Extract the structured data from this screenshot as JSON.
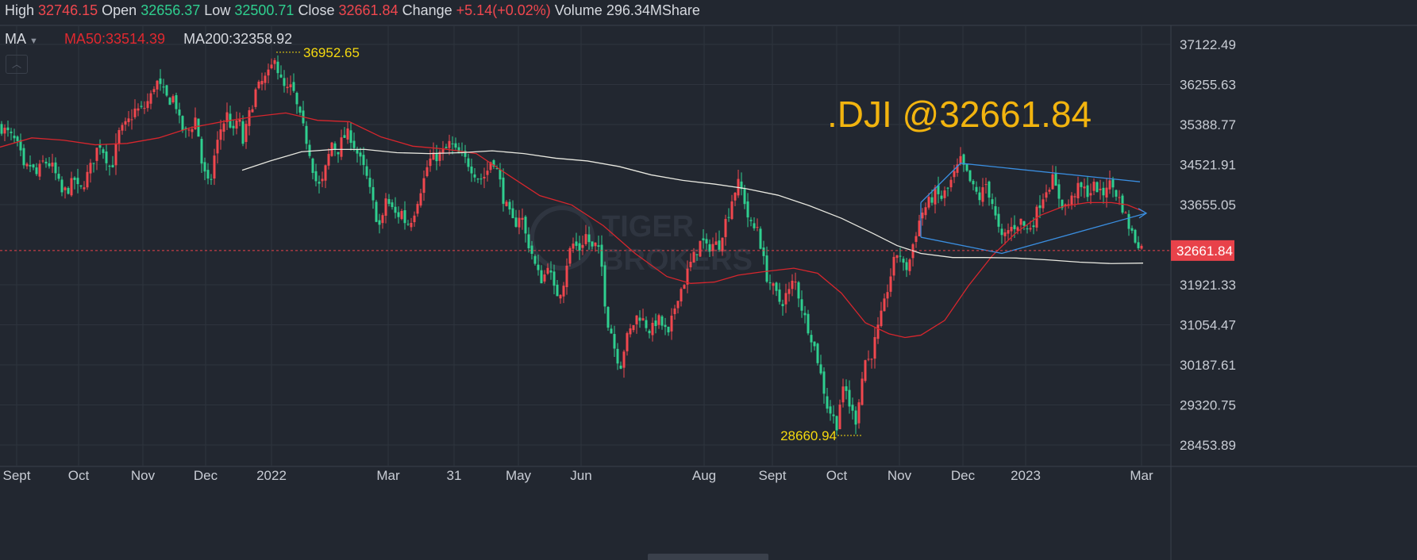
{
  "header": {
    "high_label": "High",
    "high": "32746.15",
    "open_label": "Open",
    "open": "32656.37",
    "low_label": "Low",
    "low": "32500.71",
    "close_label": "Close",
    "close": "32661.84",
    "change_label": "Change",
    "change": "+5.14(+0.02%)",
    "volume_label": "Volume",
    "volume": "296.34MShare"
  },
  "indicators": {
    "selector": "MA",
    "ma50": "MA50:33514.39",
    "ma200": "MA200:32358.92"
  },
  "watermark": {
    "line1": "TIGER",
    "line2": "BROKERS"
  },
  "colors": {
    "background": "#222730",
    "grid": "#2e343e",
    "up": "#f0474e",
    "down": "#2fcf8f",
    "ma50": "#d7262d",
    "ma200": "#e8e8e0",
    "title": "#f2b40f",
    "annotation": "#f5d90f",
    "pattern": "#3a8ee0",
    "price_tag": "#e8424a"
  },
  "chart_data": {
    "type": "candlestick",
    "title": ".DJI @32661.84",
    "yaxis_ticks": [
      "37122.49",
      "36255.63",
      "35388.77",
      "34521.91",
      "33655.05",
      "32661.84",
      "31921.33",
      "31054.47",
      "30187.61",
      "29320.75",
      "28453.89"
    ],
    "current_price": 32661.84,
    "annotations": {
      "high": "36952.65",
      "low": "28660.94"
    },
    "x_ticks": [
      "Sept",
      "Oct",
      "Nov",
      "Dec",
      "2022",
      "Mar",
      "31",
      "May",
      "Jun",
      "Aug",
      "Sept",
      "Oct",
      "Nov",
      "Dec",
      "2023",
      "Mar"
    ],
    "close_path": [
      [
        0,
        35350
      ],
      [
        10,
        35200
      ],
      [
        20,
        35000
      ],
      [
        25,
        34800
      ],
      [
        30,
        34400
      ],
      [
        38,
        34500
      ],
      [
        46,
        34300
      ],
      [
        55,
        34600
      ],
      [
        65,
        34500
      ],
      [
        70,
        34300
      ],
      [
        78,
        33900
      ],
      [
        86,
        34000
      ],
      [
        94,
        34200
      ],
      [
        100,
        33900
      ],
      [
        110,
        34300
      ],
      [
        115,
        34500
      ],
      [
        125,
        35000
      ],
      [
        131,
        34800
      ],
      [
        140,
        34400
      ],
      [
        150,
        35200
      ],
      [
        160,
        35400
      ],
      [
        170,
        35700
      ],
      [
        180,
        35700
      ],
      [
        190,
        36000
      ],
      [
        196,
        36350
      ],
      [
        205,
        36100
      ],
      [
        212,
        35900
      ],
      [
        220,
        36000
      ],
      [
        225,
        35500
      ],
      [
        232,
        35200
      ],
      [
        240,
        35300
      ],
      [
        248,
        35600
      ],
      [
        252,
        34700
      ],
      [
        258,
        34300
      ],
      [
        264,
        34000
      ],
      [
        270,
        34700
      ],
      [
        278,
        35300
      ],
      [
        286,
        35600
      ],
      [
        294,
        35200
      ],
      [
        300,
        35600
      ],
      [
        306,
        35000
      ],
      [
        314,
        35600
      ],
      [
        322,
        36100
      ],
      [
        330,
        36300
      ],
      [
        340,
        36500
      ],
      [
        346,
        36900
      ],
      [
        352,
        36400
      ],
      [
        360,
        36100
      ],
      [
        368,
        36200
      ],
      [
        375,
        35700
      ],
      [
        382,
        35300
      ],
      [
        390,
        34800
      ],
      [
        397,
        34200
      ],
      [
        404,
        34000
      ],
      [
        411,
        34500
      ],
      [
        418,
        35000
      ],
      [
        425,
        34800
      ],
      [
        432,
        35100
      ],
      [
        440,
        35200
      ],
      [
        447,
        34900
      ],
      [
        454,
        34600
      ],
      [
        461,
        34300
      ],
      [
        468,
        33800
      ],
      [
        474,
        33400
      ],
      [
        480,
        33100
      ],
      [
        486,
        33800
      ],
      [
        492,
        33600
      ],
      [
        500,
        33400
      ],
      [
        506,
        33500
      ],
      [
        512,
        33200
      ],
      [
        520,
        33400
      ],
      [
        528,
        33900
      ],
      [
        534,
        34200
      ],
      [
        540,
        34600
      ],
      [
        550,
        34700
      ],
      [
        560,
        34800
      ],
      [
        567,
        35000
      ],
      [
        574,
        34800
      ],
      [
        580,
        34700
      ],
      [
        588,
        34600
      ],
      [
        596,
        34400
      ],
      [
        604,
        34200
      ],
      [
        612,
        34300
      ],
      [
        620,
        34700
      ],
      [
        628,
        34300
      ],
      [
        634,
        33800
      ],
      [
        640,
        33500
      ],
      [
        648,
        33200
      ],
      [
        656,
        33500
      ],
      [
        662,
        33000
      ],
      [
        670,
        32600
      ],
      [
        676,
        32200
      ],
      [
        684,
        32000
      ],
      [
        690,
        32400
      ],
      [
        698,
        31800
      ],
      [
        704,
        31700
      ],
      [
        710,
        32000
      ],
      [
        716,
        32600
      ],
      [
        722,
        32800
      ],
      [
        730,
        32700
      ],
      [
        738,
        33000
      ],
      [
        746,
        32700
      ],
      [
        752,
        32800
      ],
      [
        758,
        32300
      ],
      [
        764,
        31200
      ],
      [
        770,
        30900
      ],
      [
        776,
        30400
      ],
      [
        782,
        30200
      ],
      [
        788,
        30700
      ],
      [
        796,
        31000
      ],
      [
        804,
        31300
      ],
      [
        812,
        31100
      ],
      [
        820,
        30900
      ],
      [
        828,
        31200
      ],
      [
        836,
        31000
      ],
      [
        842,
        30800
      ],
      [
        848,
        31300
      ],
      [
        854,
        31700
      ],
      [
        860,
        31900
      ],
      [
        868,
        32300
      ],
      [
        876,
        32600
      ],
      [
        884,
        32900
      ],
      [
        890,
        32700
      ],
      [
        898,
        32800
      ],
      [
        906,
        32800
      ],
      [
        912,
        33200
      ],
      [
        918,
        33500
      ],
      [
        924,
        33900
      ],
      [
        930,
        34100
      ],
      [
        936,
        33900
      ],
      [
        942,
        33400
      ],
      [
        948,
        33100
      ],
      [
        954,
        33200
      ],
      [
        960,
        32600
      ],
      [
        966,
        32100
      ],
      [
        972,
        31900
      ],
      [
        978,
        31700
      ],
      [
        984,
        31500
      ],
      [
        990,
        31700
      ],
      [
        996,
        31800
      ],
      [
        1000,
        32100
      ],
      [
        1006,
        31700
      ],
      [
        1012,
        31300
      ],
      [
        1018,
        31000
      ],
      [
        1024,
        30700
      ],
      [
        1030,
        30300
      ],
      [
        1036,
        29800
      ],
      [
        1042,
        29300
      ],
      [
        1048,
        29100
      ],
      [
        1054,
        28900
      ],
      [
        1060,
        29600
      ],
      [
        1066,
        29600
      ],
      [
        1072,
        29200
      ],
      [
        1078,
        29000
      ],
      [
        1084,
        29700
      ],
      [
        1090,
        30300
      ],
      [
        1096,
        30300
      ],
      [
        1102,
        30700
      ],
      [
        1108,
        31100
      ],
      [
        1114,
        31500
      ],
      [
        1120,
        32000
      ],
      [
        1126,
        32400
      ],
      [
        1132,
        32700
      ],
      [
        1138,
        32300
      ],
      [
        1144,
        32300
      ],
      [
        1150,
        32800
      ],
      [
        1156,
        33200
      ],
      [
        1162,
        33500
      ],
      [
        1170,
        33700
      ],
      [
        1178,
        33900
      ],
      [
        1186,
        33800
      ],
      [
        1194,
        34000
      ],
      [
        1202,
        34300
      ],
      [
        1210,
        34600
      ],
      [
        1218,
        34300
      ],
      [
        1226,
        34000
      ],
      [
        1234,
        33800
      ],
      [
        1242,
        34100
      ],
      [
        1250,
        33700
      ],
      [
        1256,
        33200
      ],
      [
        1262,
        32900
      ],
      [
        1270,
        33100
      ],
      [
        1278,
        33200
      ],
      [
        1286,
        33300
      ],
      [
        1294,
        33100
      ],
      [
        1302,
        33300
      ],
      [
        1310,
        33700
      ],
      [
        1318,
        34000
      ],
      [
        1326,
        34200
      ],
      [
        1332,
        33900
      ],
      [
        1340,
        33600
      ],
      [
        1348,
        33700
      ],
      [
        1356,
        34000
      ],
      [
        1364,
        34000
      ],
      [
        1372,
        33900
      ],
      [
        1380,
        34100
      ],
      [
        1388,
        33800
      ],
      [
        1394,
        34100
      ],
      [
        1400,
        34100
      ],
      [
        1406,
        33900
      ],
      [
        1412,
        33700
      ],
      [
        1418,
        33400
      ],
      [
        1424,
        33100
      ],
      [
        1430,
        32900
      ],
      [
        1436,
        32800
      ],
      [
        1440,
        32661.84
      ]
    ],
    "ma50_path": [
      [
        0,
        34900
      ],
      [
        40,
        35100
      ],
      [
        80,
        35050
      ],
      [
        120,
        34950
      ],
      [
        160,
        34980
      ],
      [
        200,
        35100
      ],
      [
        240,
        35320
      ],
      [
        280,
        35450
      ],
      [
        320,
        35560
      ],
      [
        360,
        35640
      ],
      [
        400,
        35480
      ],
      [
        440,
        35450
      ],
      [
        480,
        35120
      ],
      [
        520,
        34920
      ],
      [
        560,
        34860
      ],
      [
        600,
        34760
      ],
      [
        640,
        34300
      ],
      [
        680,
        33850
      ],
      [
        720,
        33650
      ],
      [
        760,
        33200
      ],
      [
        800,
        32600
      ],
      [
        840,
        32100
      ],
      [
        870,
        31950
      ],
      [
        900,
        31980
      ],
      [
        930,
        32130
      ],
      [
        960,
        32200
      ],
      [
        1000,
        32280
      ],
      [
        1030,
        32170
      ],
      [
        1060,
        31740
      ],
      [
        1090,
        31100
      ],
      [
        1120,
        30860
      ],
      [
        1140,
        30780
      ],
      [
        1160,
        30830
      ],
      [
        1190,
        31150
      ],
      [
        1220,
        31900
      ],
      [
        1250,
        32550
      ],
      [
        1280,
        33050
      ],
      [
        1310,
        33420
      ],
      [
        1340,
        33620
      ],
      [
        1370,
        33700
      ],
      [
        1400,
        33700
      ],
      [
        1420,
        33650
      ],
      [
        1440,
        33510
      ]
    ],
    "ma200_path": [
      [
        305,
        34400
      ],
      [
        340,
        34600
      ],
      [
        380,
        34800
      ],
      [
        420,
        34850
      ],
      [
        460,
        34850
      ],
      [
        500,
        34780
      ],
      [
        540,
        34760
      ],
      [
        580,
        34780
      ],
      [
        620,
        34820
      ],
      [
        660,
        34760
      ],
      [
        700,
        34660
      ],
      [
        740,
        34600
      ],
      [
        780,
        34480
      ],
      [
        820,
        34300
      ],
      [
        860,
        34180
      ],
      [
        900,
        34100
      ],
      [
        940,
        34000
      ],
      [
        980,
        33860
      ],
      [
        1020,
        33630
      ],
      [
        1060,
        33360
      ],
      [
        1100,
        33030
      ],
      [
        1130,
        32770
      ],
      [
        1160,
        32600
      ],
      [
        1200,
        32510
      ],
      [
        1240,
        32510
      ],
      [
        1280,
        32500
      ],
      [
        1320,
        32460
      ],
      [
        1360,
        32410
      ],
      [
        1400,
        32380
      ],
      [
        1440,
        32390
      ]
    ],
    "pattern": {
      "upper": [
        [
          1160,
          33700
        ],
        [
          1210,
          34550
        ],
        [
          1436,
          34150
        ]
      ],
      "lower": [
        [
          1160,
          32950
        ],
        [
          1262,
          32600
        ],
        [
          1444,
          33470
        ]
      ]
    }
  }
}
